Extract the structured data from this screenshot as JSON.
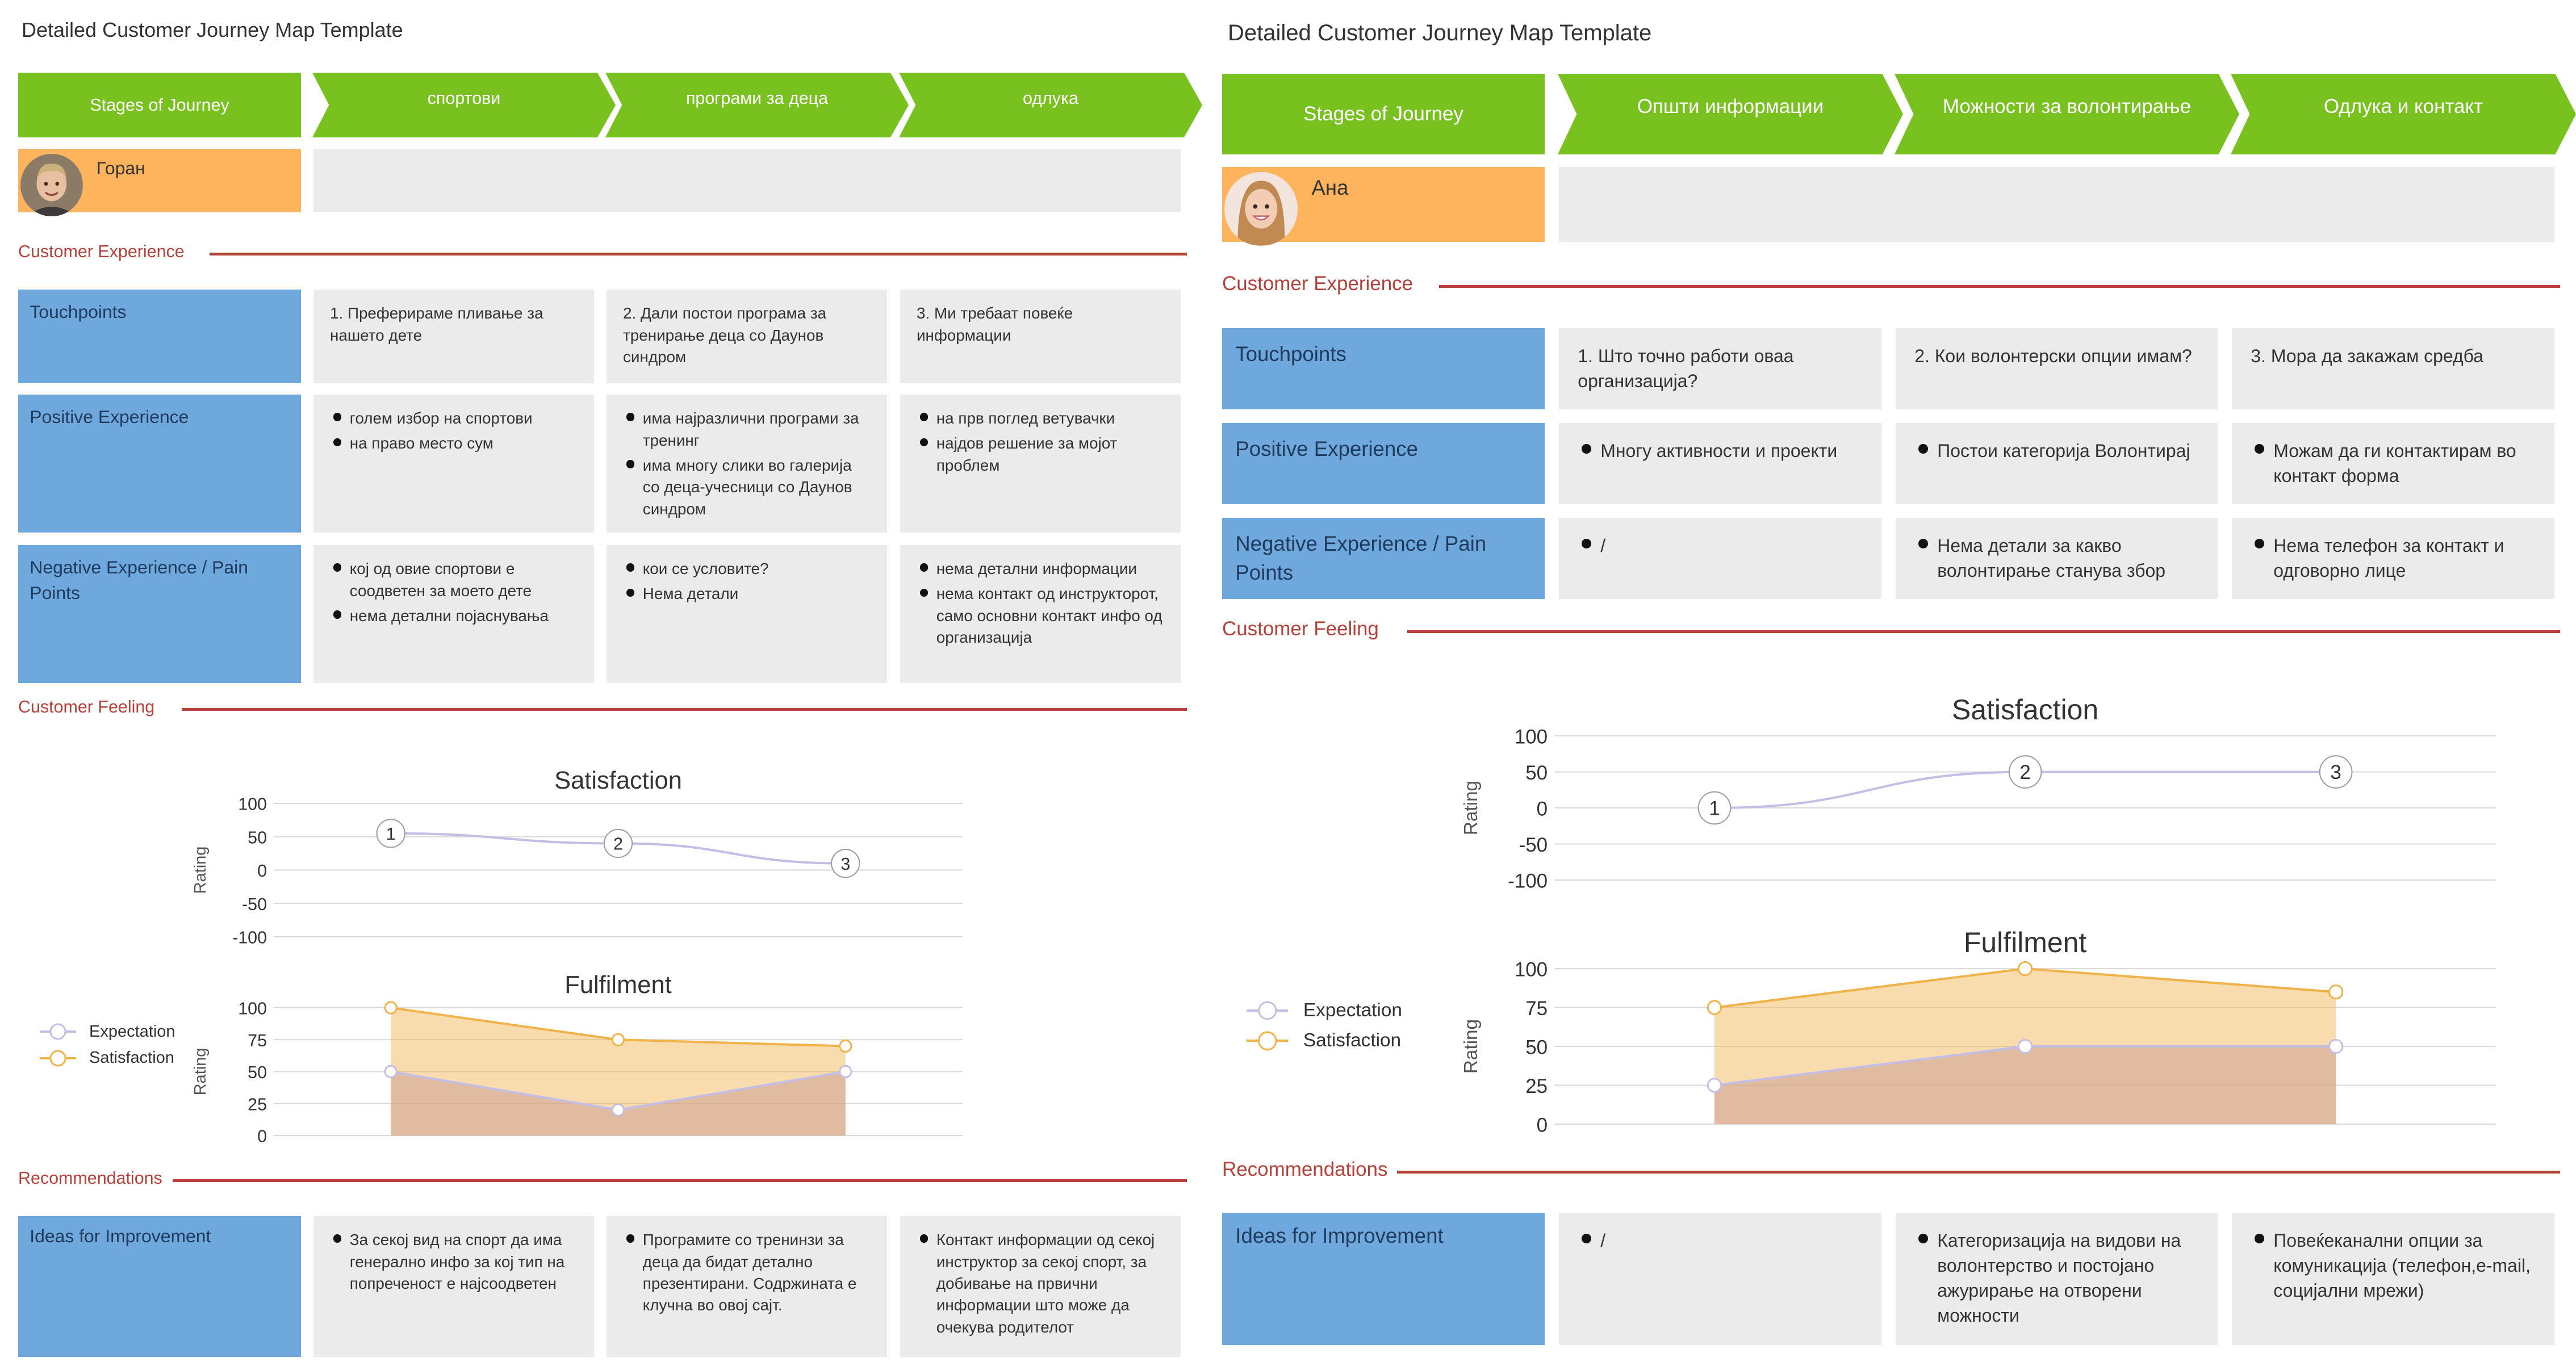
{
  "maps": [
    {
      "title": "Detailed Customer Journey Map Template",
      "stages_label": "Stages of Journey",
      "stages": [
        "спортови",
        "програми за деца",
        "одлука"
      ],
      "persona": {
        "name": "Горан",
        "avatar": "male-avatar"
      },
      "customer_experience_label": "Customer Experience",
      "rows": [
        {
          "label": "Touchpoints",
          "type": "text",
          "cells": [
            "1. Преферираме пливање за нашето дете",
            "2. Дали постои програма за тренирање деца со Даунов синдром",
            "3. Ми требаат повеќе информации"
          ]
        },
        {
          "label": "Positive Experience",
          "type": "bullets",
          "cells": [
            [
              "голем избор на спортови",
              "на право место сум"
            ],
            [
              "има најразлични програми за тренинг",
              "има многу слики во галерија со деца-учесници со Даунов синдром"
            ],
            [
              "на прв поглед ветувачки",
              "најдов решение за мојот проблем"
            ]
          ]
        },
        {
          "label": "Negative Experience / Pain Points",
          "type": "bullets",
          "cells": [
            [
              "кој од овие спортови е соодветен за моето дете",
              "нема детални појаснувања"
            ],
            [
              "кои се условите?",
              "Нема детали"
            ],
            [
              "нема детални информации",
              "нема контакт од инструкторот, само основни контакт инфо од организација"
            ]
          ]
        }
      ],
      "customer_feeling_label": "Customer Feeling",
      "recommendations_label": "Recommendations",
      "ideas": {
        "label": "Ideas for Improvement",
        "cells": [
          [
            "За секој вид на спорт да има генерално инфо за кој тип на попреченост е најсоодветен"
          ],
          [
            "Програмите со тренинзи за деца да бидат детално презентирани. Содржината е клучна во овој сајт."
          ],
          [
            "Контакт информации од секој инструктор за секој спорт, за добивање на првични информации што може да очекува родителот"
          ]
        ]
      },
      "legend": [
        "Expectation",
        "Satisfaction"
      ]
    },
    {
      "title": "Detailed Customer Journey Map Template",
      "stages_label": "Stages of Journey",
      "stages": [
        "Општи информации",
        "Можности за волонтирање",
        "Одлука и контакт"
      ],
      "persona": {
        "name": "Ана",
        "avatar": "female-avatar"
      },
      "customer_experience_label": "Customer Experience",
      "rows": [
        {
          "label": "Touchpoints",
          "type": "text",
          "cells": [
            "1. Што точно работи оваа организација?",
            "2. Кои волонтерски опции имам?",
            "3. Мора да закажам средба"
          ]
        },
        {
          "label": "Positive Experience",
          "type": "bullets",
          "cells": [
            [
              "Многу активности и проекти"
            ],
            [
              "Постои категорија Волонтирај"
            ],
            [
              "Можам да ги контактирам во контакт форма"
            ]
          ]
        },
        {
          "label": "Negative Experience / Pain Points",
          "type": "bullets",
          "cells": [
            [
              "/"
            ],
            [
              "Нема детали за какво волонтирање станува збор"
            ],
            [
              "Нема телефон за контакт и одговорно лице"
            ]
          ]
        }
      ],
      "customer_feeling_label": "Customer Feeling",
      "recommendations_label": "Recommendations",
      "ideas": {
        "label": "Ideas for Improvement",
        "cells": [
          [
            "/"
          ],
          [
            "Категоризација на видови на волонтерство и постојано ажурирање на отворени можности"
          ],
          [
            "Повеќеканални опции за комуникација (телефон,e-mail, социјални мрежи)"
          ]
        ]
      },
      "legend": [
        "Expectation",
        "Satisfaction"
      ]
    }
  ],
  "chart_data": [
    {
      "type": "line",
      "title": "Satisfaction",
      "ylabel": "Rating",
      "ylim": [
        -100,
        100
      ],
      "yticks": [
        100,
        50,
        0,
        -50,
        -100
      ],
      "grid": true,
      "series": [
        {
          "name": "",
          "x": [
            1,
            2,
            3
          ],
          "values": [
            55,
            40,
            10
          ],
          "point_labels": [
            "1",
            "2",
            "3"
          ]
        }
      ]
    },
    {
      "type": "area",
      "title": "Fulfilment",
      "ylabel": "Rating",
      "ylim": [
        0,
        100
      ],
      "yticks": [
        100,
        75,
        50,
        25,
        0
      ],
      "grid": true,
      "legend_position": "left",
      "series": [
        {
          "name": "Expectation",
          "x": [
            1,
            2,
            3
          ],
          "values": [
            50,
            20,
            50
          ]
        },
        {
          "name": "Satisfaction",
          "x": [
            1,
            2,
            3
          ],
          "values": [
            100,
            75,
            70
          ]
        }
      ]
    },
    {
      "type": "line",
      "title": "Satisfaction",
      "ylabel": "Rating",
      "ylim": [
        -100,
        100
      ],
      "yticks": [
        100,
        50,
        0,
        -50,
        -100
      ],
      "grid": true,
      "series": [
        {
          "name": "",
          "x": [
            1,
            2,
            3
          ],
          "values": [
            0,
            50,
            50
          ],
          "point_labels": [
            "1",
            "2",
            "3"
          ]
        }
      ]
    },
    {
      "type": "area",
      "title": "Fulfilment",
      "ylabel": "Rating",
      "ylim": [
        0,
        100
      ],
      "yticks": [
        100,
        75,
        50,
        25,
        0
      ],
      "grid": true,
      "legend_position": "left",
      "series": [
        {
          "name": "Expectation",
          "x": [
            1,
            2,
            3
          ],
          "values": [
            25,
            50,
            50
          ]
        },
        {
          "name": "Satisfaction",
          "x": [
            1,
            2,
            3
          ],
          "values": [
            75,
            100,
            85
          ]
        }
      ]
    }
  ],
  "colors": {
    "stage": "#78c11f",
    "persona": "#fdb45c",
    "label": "#6fa8dc",
    "cell": "#ebebeb",
    "section": "#b5413a",
    "expectation": "#c4bde6",
    "satisfaction": "#f2b24a"
  }
}
